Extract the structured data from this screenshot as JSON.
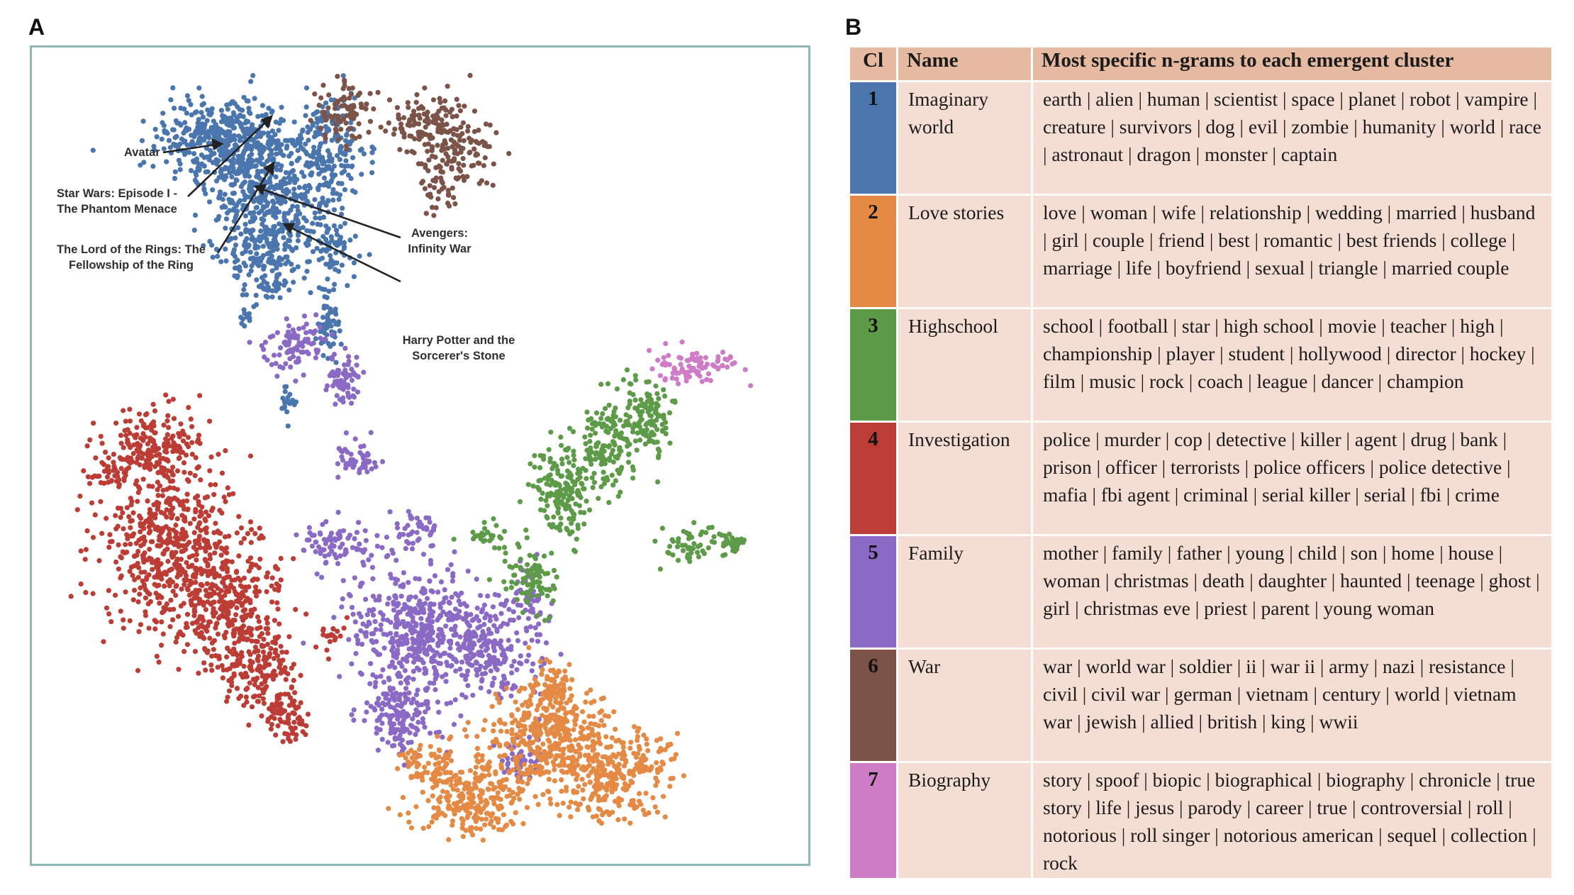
{
  "panels": {
    "a_label": "A",
    "b_label": "B"
  },
  "annotations": [
    {
      "label": "Avatar"
    },
    {
      "label": "Star Wars: Episode I -",
      "label2": "The Phantom Menace"
    },
    {
      "label": "Avengers:",
      "label2": "Infinity War"
    },
    {
      "label": "The Lord of the Rings: The",
      "label2": "Fellowship of the Ring"
    },
    {
      "label": "Harry Potter and the",
      "label2": "Sorcerer's Stone"
    }
  ],
  "table": {
    "headers": {
      "cl": "Cl",
      "name": "Name",
      "ngrams": "Most specific n-grams to each emergent cluster"
    },
    "rows": [
      {
        "cl": "1",
        "name": "Imaginary world",
        "color": "#4a76ad",
        "ngrams": "earth | alien | human | scientist | space | planet | robot | vampire | creature | survivors | dog | evil | zombie | humanity | world | race | astronaut | dragon | monster | captain"
      },
      {
        "cl": "2",
        "name": "Love stories",
        "color": "#e48a45",
        "ngrams": "love | woman | wife | relationship | wedding | married | husband | girl | couple | friend | best | romantic | best friends | college | marriage | life | boyfriend | sexual | triangle | married couple"
      },
      {
        "cl": "3",
        "name": "Highschool",
        "color": "#5d9b48",
        "ngrams": "school | football | star | high school | movie | teacher | high | championship | player | student | hollywood | director | hockey | film | music | rock | coach | league | dancer | champion"
      },
      {
        "cl": "4",
        "name": "Investigation",
        "color": "#bc3d35",
        "ngrams": "police | murder | cop | detective | killer | agent | drug | bank | prison | officer | terrorists | police officers | police detective | mafia | fbi agent | criminal | serial killer | serial | fbi | crime"
      },
      {
        "cl": "5",
        "name": "Family",
        "color": "#8a6ac4",
        "ngrams": "mother | family | father | young | child | son | home | house | woman | christmas | death | daughter | haunted | teenage | ghost | girl | christmas eve | priest | parent | young woman"
      },
      {
        "cl": "6",
        "name": "War",
        "color": "#7b5348",
        "ngrams": "war | world war | soldier | ii | war ii | army | nazi | resistance | civil | civil war | german | vietnam | century | world | vietnam war | jewish | allied | british | king | wwii"
      },
      {
        "cl": "7",
        "name": "Biography",
        "color": "#cf7cc6",
        "ngrams": "story | spoof | biopic | biographical | biography | chronicle | true story | life | jesus | parody | career | true | controversial | roll | notorious | roll singer | notorious american | sequel | collection | rock"
      }
    ]
  },
  "chart_data": {
    "type": "scatter",
    "title": "",
    "xlabel": "",
    "ylabel": "",
    "grid": false,
    "legend": "none",
    "series": [
      {
        "cluster": "1",
        "color": "#4a76ad"
      },
      {
        "cluster": "2",
        "color": "#e48a45"
      },
      {
        "cluster": "3",
        "color": "#5d9b48"
      },
      {
        "cluster": "4",
        "color": "#bc3d35"
      },
      {
        "cluster": "5",
        "color": "#8a6ac4"
      },
      {
        "cluster": "6",
        "color": "#7b5348"
      },
      {
        "cluster": "7",
        "color": "#cf7cc6"
      }
    ]
  }
}
